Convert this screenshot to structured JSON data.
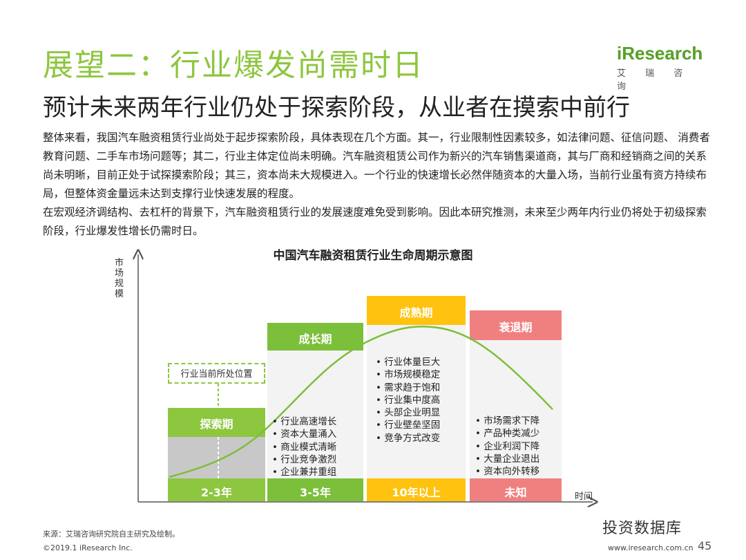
{
  "header": {
    "title": "展望二：行业爆发尚需时日",
    "subtitle": "预计未来两年行业仍处于探索阶段，从业者在摸索中前行",
    "logo_main": "iResearch",
    "logo_sub": "艾 瑞 咨 询"
  },
  "body": {
    "paragraph_1": "整体来看，我国汽车融资租赁行业尚处于起步探索阶段，具体表现在几个方面。其一，行业限制性因素较多，如法律问题、征信问题、 消费者教育问题、二手车市场问题等；其二，行业主体定位尚未明确。汽车融资租赁公司作为新兴的汽车销售渠道商，其与厂商和经销商之间的关系尚未明晰，目前正处于试探摸索阶段；其三，资本尚未大规模进入。一个行业的快速增长必然伴随资本的大量入场，当前行业虽有资方持续布局，但整体资金量远未达到支撑行业快速发展的程度。",
    "paragraph_2": "在宏观经济调结构、去杠杆的背景下，汽车融资租赁行业的发展速度难免受到影响。因此本研究推测，未来至少两年内行业仍将处于初级探索阶段，行业爆发性增长仍需时日。"
  },
  "diagram": {
    "title": "中国汽车融资租赁行业生命周期示意图",
    "y_axis_label": "市场规模",
    "x_axis_label": "时间",
    "current_position_label": "行业当前所处位置",
    "stages": [
      {
        "name": "探索期",
        "duration": "2-3年",
        "color": "#8dc63f",
        "bullets": []
      },
      {
        "name": "成长期",
        "duration": "3-5年",
        "color": "#7cbf3a",
        "bullets": [
          "行业高速增长",
          "资本大量涌入",
          "商业模式清晰",
          "行业竞争激烈",
          "企业兼并重组"
        ]
      },
      {
        "name": "成熟期",
        "duration": "10年以上",
        "color": "#ffc20e",
        "bullets": [
          "行业体量巨大",
          "市场规模稳定",
          "需求趋于饱和",
          "行业集中度高",
          "头部企业明显",
          "行业壁垒坚固",
          "竞争方式改变"
        ]
      },
      {
        "name": "衰退期",
        "duration": "未知",
        "color": "#f08080",
        "bullets": [
          "市场需求下降",
          "产品种类减少",
          "企业利润下降",
          "大量企业退出",
          "资本向外转移"
        ]
      }
    ]
  },
  "footer": {
    "source": "来源：艾瑞咨询研究院自主研究及绘制。",
    "copyright": "©2019.1 iResearch Inc.",
    "website": "www.iresearch.com.cn",
    "page_number": "45",
    "watermark": "投资数据库"
  }
}
